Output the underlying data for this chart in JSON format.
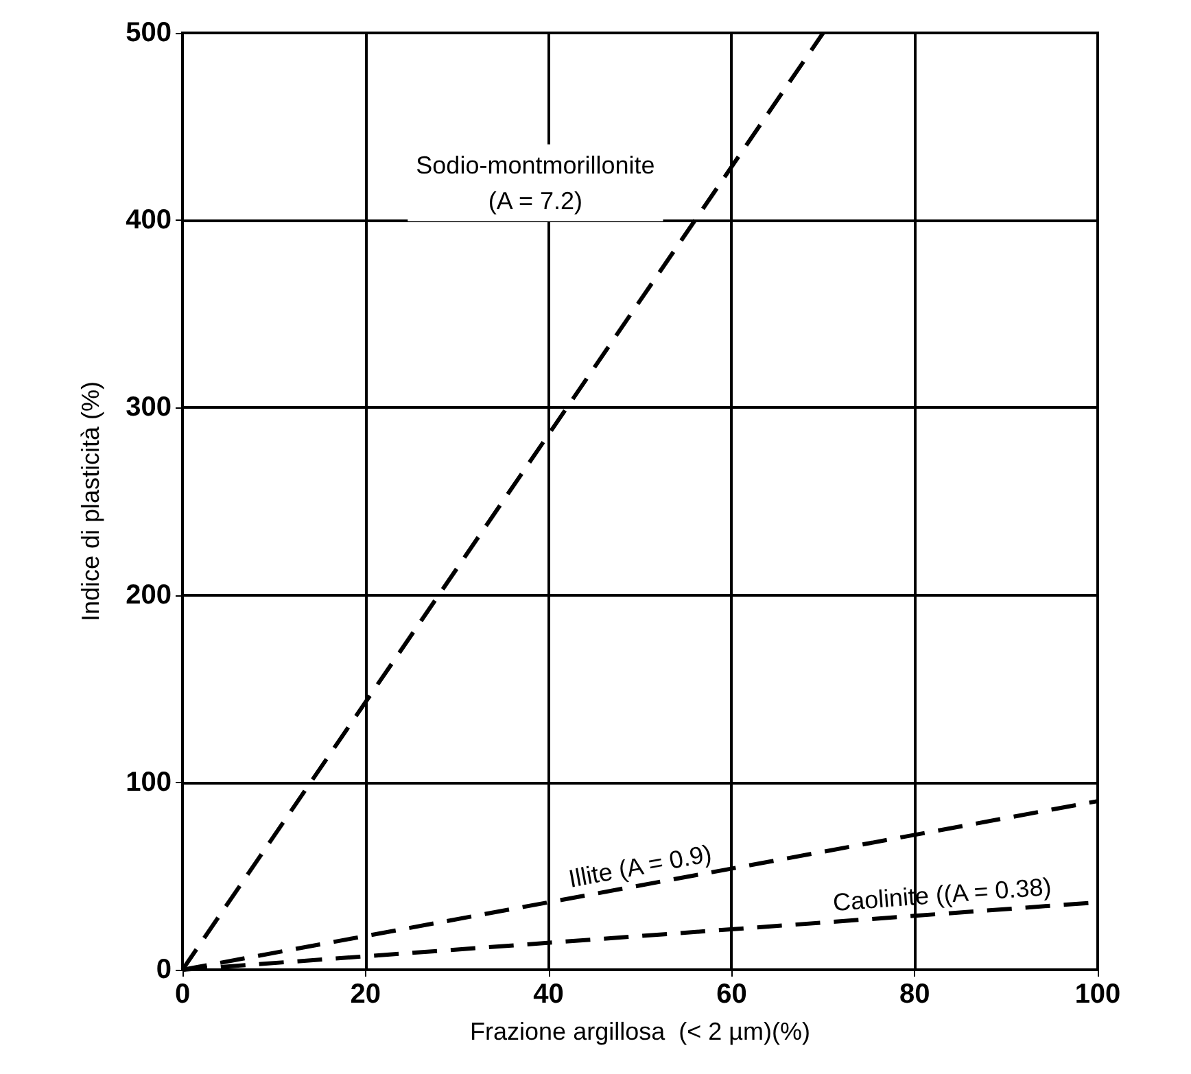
{
  "chart_data": {
    "type": "line",
    "xlabel": "Frazione argillosa  (< 2 µm)(%)",
    "ylabel": "Indice di plasticità (%)",
    "xlim": [
      0,
      100
    ],
    "ylim": [
      0,
      500
    ],
    "xticks": [
      0,
      20,
      40,
      60,
      80,
      100
    ],
    "yticks": [
      0,
      100,
      200,
      300,
      400,
      500
    ],
    "grid": true,
    "legend": false,
    "marker": "none",
    "line_style": "dashed",
    "series": [
      {
        "name": "Sodio-montmorillonite\n(A = 7.2)",
        "color": "#000000",
        "x": [
          0,
          70
        ],
        "values": [
          0,
          500
        ]
      },
      {
        "name": "Illite (A = 0.9)",
        "color": "#000000",
        "x": [
          0,
          100
        ],
        "values": [
          0,
          90
        ]
      },
      {
        "name": "Caolinite ((A = 0.38)",
        "color": "#000000",
        "x": [
          0,
          100
        ],
        "values": [
          0,
          36
        ]
      }
    ]
  }
}
